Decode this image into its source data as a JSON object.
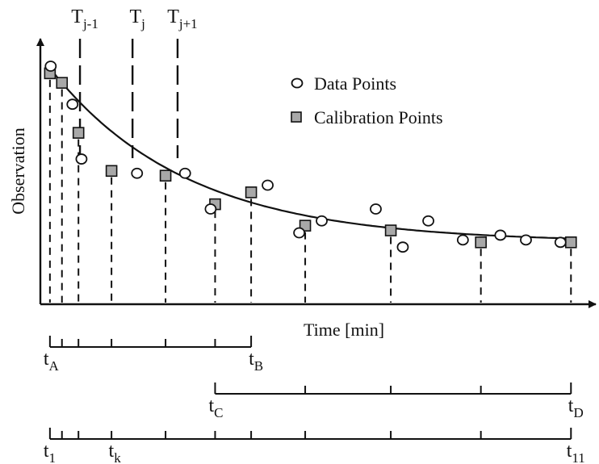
{
  "chart_data": {
    "type": "scatter",
    "title": "",
    "xlabel": "Time [min]",
    "ylabel": "Observation",
    "grid": false,
    "legend_position": "top-right",
    "legend": {
      "data": "Data Points",
      "calibration": "Calibration Points"
    },
    "t_markers": [
      {
        "base": "T",
        "sub": "j-1",
        "t": 2.1
      },
      {
        "base": "T",
        "sub": "j",
        "t": 5.6
      },
      {
        "base": "T",
        "sub": "j+1",
        "t": 8.6
      }
    ],
    "fitted_curve": {
      "form": "exponential decay",
      "y0": 1.0,
      "y_inf": 0.26,
      "k": 0.11
    },
    "calibration_points": {
      "name": "Calibration Points",
      "x": [
        0.1,
        0.9,
        2.0,
        4.2,
        7.8,
        11.1,
        13.5,
        17.1,
        22.8,
        28.8,
        34.8
      ],
      "y": [
        0.97,
        0.93,
        0.72,
        0.56,
        0.54,
        0.42,
        0.47,
        0.33,
        0.31,
        0.26,
        0.26
      ]
    },
    "data_points": {
      "name": "Data Points",
      "x": [
        0.15,
        1.6,
        2.2,
        5.9,
        9.1,
        10.8,
        14.6,
        16.7,
        18.2,
        21.8,
        23.6,
        25.3,
        27.6,
        30.1,
        31.8,
        34.1
      ],
      "y": [
        1.0,
        0.84,
        0.61,
        0.55,
        0.55,
        0.4,
        0.5,
        0.3,
        0.35,
        0.4,
        0.24,
        0.35,
        0.27,
        0.29,
        0.27,
        0.26
      ]
    },
    "time_scales": [
      {
        "left": {
          "base": "t",
          "sub": "A"
        },
        "right": {
          "base": "t",
          "sub": "B"
        },
        "ticks": [
          0.1,
          0.9,
          2.0,
          4.2,
          7.8,
          11.1,
          13.5
        ]
      },
      {
        "left": {
          "base": "t",
          "sub": "C"
        },
        "right": {
          "base": "t",
          "sub": "D"
        },
        "ticks": [
          11.1,
          17.1,
          22.8,
          28.8,
          34.8
        ]
      },
      {
        "left": {
          "base": "t",
          "sub": "1"
        },
        "right": {
          "base": "t",
          "sub": "11"
        },
        "mid": {
          "base": "t",
          "sub": "k",
          "t": 4.2
        },
        "ticks": [
          0.1,
          0.9,
          2.0,
          4.2,
          7.8,
          11.1,
          13.5,
          17.1,
          22.8,
          28.8,
          34.8
        ]
      }
    ]
  }
}
